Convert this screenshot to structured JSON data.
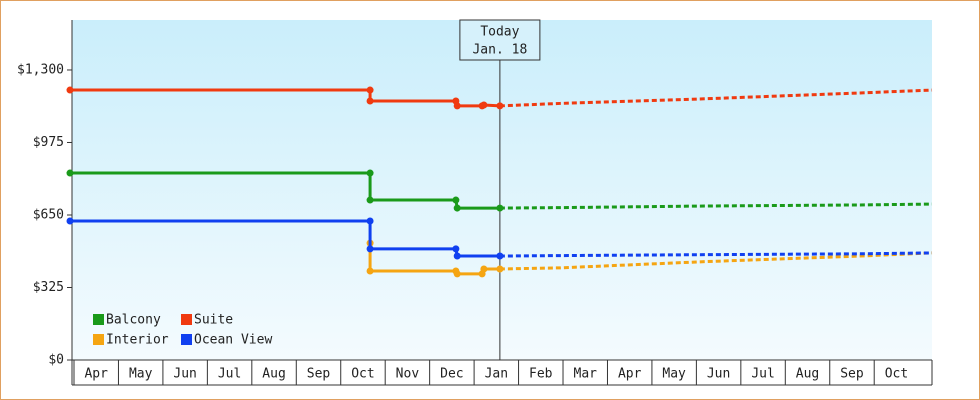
{
  "chart_data": {
    "type": "line",
    "annotation": {
      "x": 9.58,
      "lines": [
        "Today",
        "Jan. 18"
      ]
    },
    "xlim": [
      -0.09,
      19.3
    ],
    "ylim": [
      0,
      1524
    ],
    "yticks": [
      {
        "value": 0,
        "label": "$0"
      },
      {
        "value": 325,
        "label": "$325"
      },
      {
        "value": 650,
        "label": "$650"
      },
      {
        "value": 975,
        "label": "$975"
      },
      {
        "value": 1300,
        "label": "$1,300"
      }
    ],
    "xticks": [
      {
        "value": 0.5,
        "label": "Apr"
      },
      {
        "value": 1.5,
        "label": "May"
      },
      {
        "value": 2.5,
        "label": "Jun"
      },
      {
        "value": 3.5,
        "label": "Jul"
      },
      {
        "value": 4.5,
        "label": "Aug"
      },
      {
        "value": 5.5,
        "label": "Sep"
      },
      {
        "value": 6.5,
        "label": "Oct"
      },
      {
        "value": 7.5,
        "label": "Nov"
      },
      {
        "value": 8.5,
        "label": "Dec"
      },
      {
        "value": 9.5,
        "label": "Jan"
      },
      {
        "value": 10.5,
        "label": "Feb"
      },
      {
        "value": 11.5,
        "label": "Mar"
      },
      {
        "value": 12.5,
        "label": "Apr"
      },
      {
        "value": 13.5,
        "label": "May"
      },
      {
        "value": 14.5,
        "label": "Jun"
      },
      {
        "value": 15.5,
        "label": "Jul"
      },
      {
        "value": 16.5,
        "label": "Aug"
      },
      {
        "value": 17.5,
        "label": "Sep"
      },
      {
        "value": 18.5,
        "label": "Oct"
      }
    ],
    "legend": "lower left",
    "series": [
      {
        "name": "Balcony",
        "color": "#1a9a1a",
        "x": [
          -0.09,
          6.66,
          6.66,
          8.59,
          8.62,
          9.58
        ],
        "values": [
          838,
          838,
          717,
          717,
          681,
          681
        ],
        "forecast_x": [
          9.58,
          10.93,
          14.08,
          17.68,
          19.3
        ],
        "forecast_values": [
          681,
          683,
          690,
          695,
          699
        ]
      },
      {
        "name": "Suite",
        "color": "#f03a10",
        "x": [
          -0.09,
          6.66,
          6.66,
          8.59,
          8.62,
          9.18,
          9.22,
          9.58
        ],
        "values": [
          1210,
          1210,
          1161,
          1161,
          1139,
          1139,
          1143,
          1139
        ],
        "forecast_x": [
          9.58,
          10.93,
          14.08,
          17.68,
          19.3
        ],
        "forecast_values": [
          1139,
          1150,
          1170,
          1197,
          1210
        ]
      },
      {
        "name": "Interior",
        "color": "#f5a512",
        "x": [
          6.66,
          6.66,
          8.59,
          8.62,
          9.18,
          9.22,
          9.58
        ],
        "values": [
          524,
          399,
          399,
          386,
          386,
          408,
          408
        ],
        "forecast_x": [
          9.58,
          10.93,
          14.08,
          17.68,
          19.3
        ],
        "forecast_values": [
          408,
          413,
          440,
          466,
          480
        ]
      },
      {
        "name": "Ocean View",
        "color": "#1040f0",
        "x": [
          -0.09,
          6.66,
          6.66,
          8.59,
          8.62,
          9.58
        ],
        "values": [
          623,
          623,
          498,
          498,
          466,
          466
        ],
        "forecast_x": [
          9.58,
          10.93,
          14.08,
          17.68,
          19.3
        ],
        "forecast_values": [
          466,
          468,
          472,
          476,
          480
        ]
      }
    ]
  }
}
